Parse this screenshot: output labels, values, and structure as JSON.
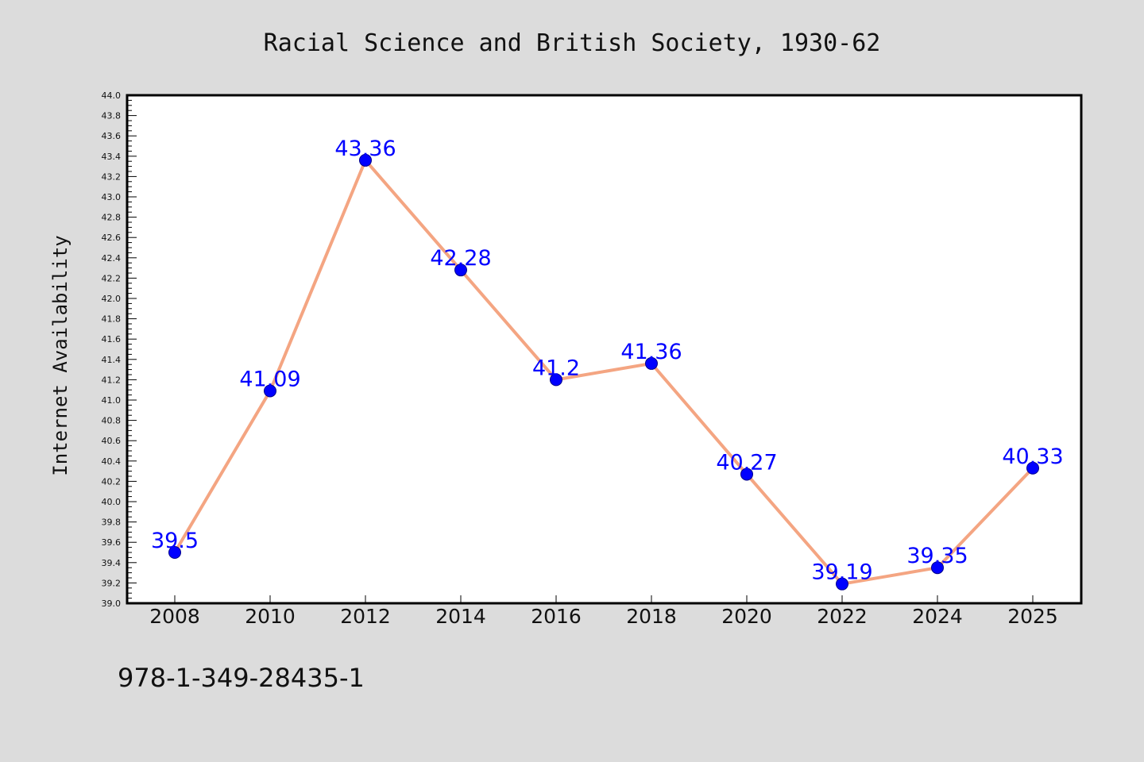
{
  "chart_data": {
    "type": "line",
    "title": "Racial Science and British Society, 1930-62",
    "xlabel": "",
    "ylabel": "Internet Availability",
    "categories": [
      "2008",
      "2010",
      "2012",
      "2014",
      "2016",
      "2018",
      "2020",
      "2022",
      "2024",
      "2025"
    ],
    "series": [
      {
        "values": [
          39.5,
          41.09,
          43.36,
          42.28,
          41.2,
          41.36,
          40.27,
          39.19,
          39.35,
          40.33
        ],
        "labels": [
          "39.5",
          "41.09",
          "43.36",
          "42.28",
          "41.2",
          "41.36",
          "40.27",
          "39.19",
          "39.35",
          "40.33"
        ],
        "line_color": "#f4a582",
        "marker_color": "#0000ff"
      }
    ],
    "ylim": [
      39.0,
      44.0
    ],
    "yticks": [
      "39.0",
      "39.2",
      "39.4",
      "39.6",
      "39.8",
      "40.0",
      "40.2",
      "40.4",
      "40.6",
      "40.8",
      "41.0",
      "41.2",
      "41.4",
      "41.6",
      "41.8",
      "42.0",
      "42.2",
      "42.4",
      "42.6",
      "42.8",
      "43.0",
      "43.2",
      "43.4",
      "43.6",
      "43.8",
      "44.0"
    ],
    "grid": false,
    "legend": "none"
  },
  "caption": "978-1-349-28435-1",
  "colors": {
    "background": "#dcdcdc",
    "plot_background": "#ffffff",
    "data_label": "#0000ff"
  }
}
